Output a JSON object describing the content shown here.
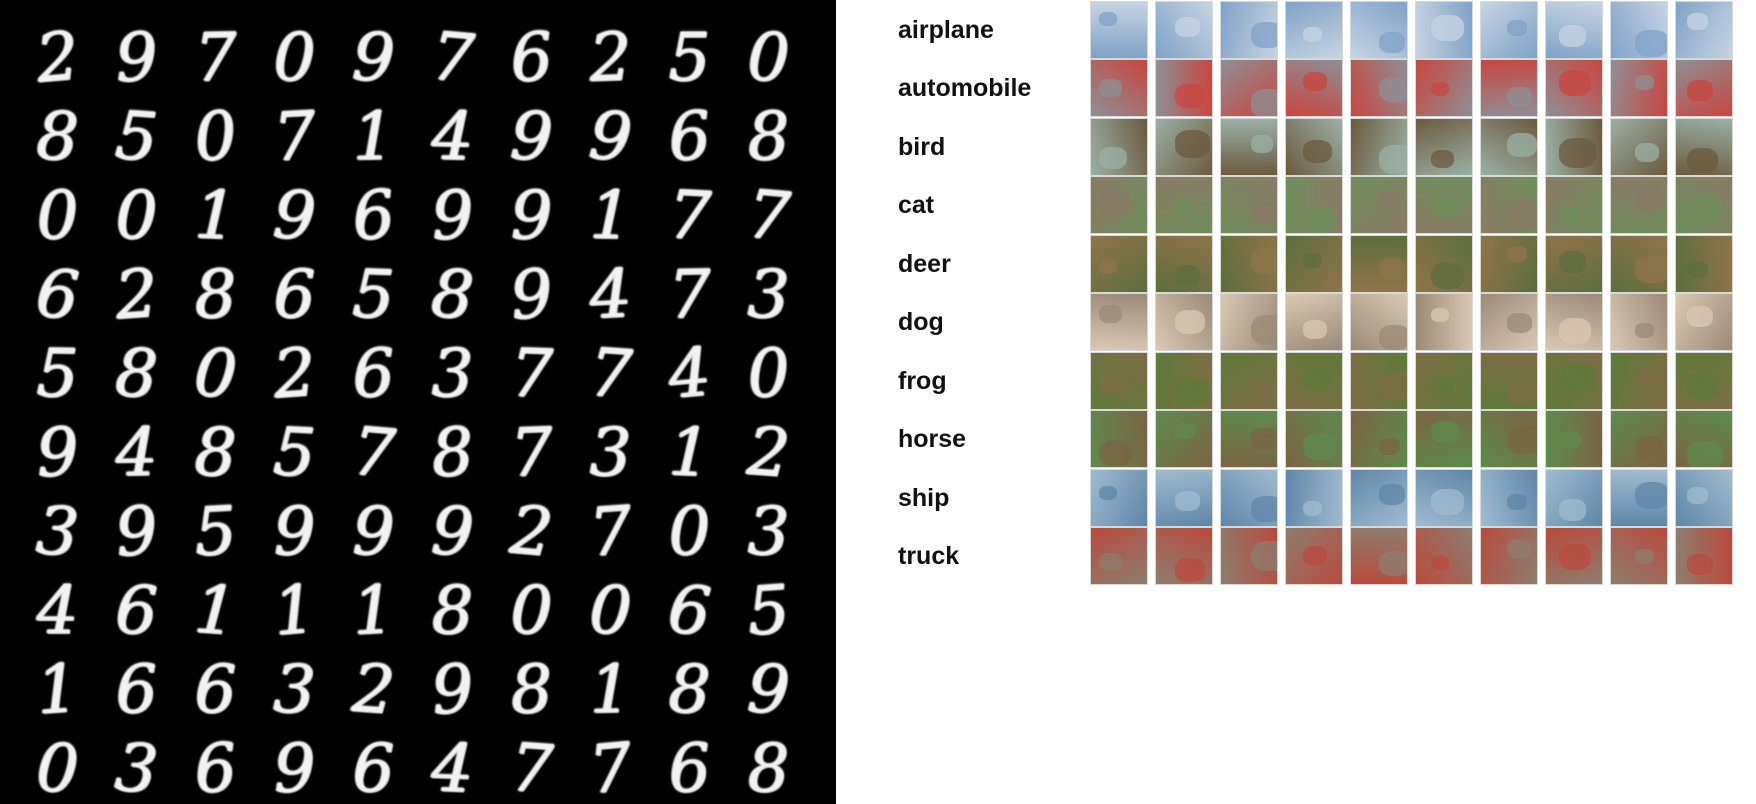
{
  "mnist": {
    "rows": [
      [
        "2",
        "9",
        "7",
        "0",
        "9",
        "7",
        "6",
        "2",
        "5",
        "0"
      ],
      [
        "8",
        "5",
        "0",
        "7",
        "1",
        "4",
        "9",
        "9",
        "6",
        "8"
      ],
      [
        "0",
        "0",
        "1",
        "9",
        "6",
        "9",
        "9",
        "1",
        "7",
        "7"
      ],
      [
        "6",
        "2",
        "8",
        "6",
        "5",
        "8",
        "9",
        "4",
        "7",
        "3"
      ],
      [
        "5",
        "8",
        "0",
        "2",
        "6",
        "3",
        "7",
        "7",
        "4",
        "0"
      ],
      [
        "9",
        "4",
        "8",
        "5",
        "7",
        "8",
        "7",
        "3",
        "1",
        "2"
      ],
      [
        "3",
        "9",
        "5",
        "9",
        "9",
        "9",
        "2",
        "7",
        "0",
        "3"
      ],
      [
        "4",
        "6",
        "1",
        "1",
        "1",
        "8",
        "0",
        "0",
        "6",
        "5"
      ],
      [
        "1",
        "6",
        "6",
        "3",
        "2",
        "9",
        "8",
        "1",
        "8",
        "9"
      ],
      [
        "0",
        "3",
        "6",
        "9",
        "6",
        "4",
        "7",
        "7",
        "6",
        "8"
      ]
    ]
  },
  "cifar": {
    "classes": [
      {
        "label": "airplane",
        "colors": [
          "#7fa2c8",
          "#c7d4e2"
        ]
      },
      {
        "label": "automobile",
        "colors": [
          "#8d8f96",
          "#c9463f"
        ]
      },
      {
        "label": "bird",
        "colors": [
          "#9bb0a6",
          "#6b5a3f"
        ]
      },
      {
        "label": "cat",
        "colors": [
          "#8a7a66",
          "#6f8d5a"
        ]
      },
      {
        "label": "deer",
        "colors": [
          "#8f7449",
          "#5d6e3d"
        ]
      },
      {
        "label": "dog",
        "colors": [
          "#9b8a78",
          "#d9c8b2"
        ]
      },
      {
        "label": "frog",
        "colors": [
          "#7e6d45",
          "#5f7a3a"
        ]
      },
      {
        "label": "horse",
        "colors": [
          "#7a6444",
          "#5e8a4b"
        ]
      },
      {
        "label": "ship",
        "colors": [
          "#5f86a8",
          "#9fbcd0"
        ]
      },
      {
        "label": "truck",
        "colors": [
          "#8d7e6f",
          "#b94a3c"
        ]
      }
    ]
  }
}
